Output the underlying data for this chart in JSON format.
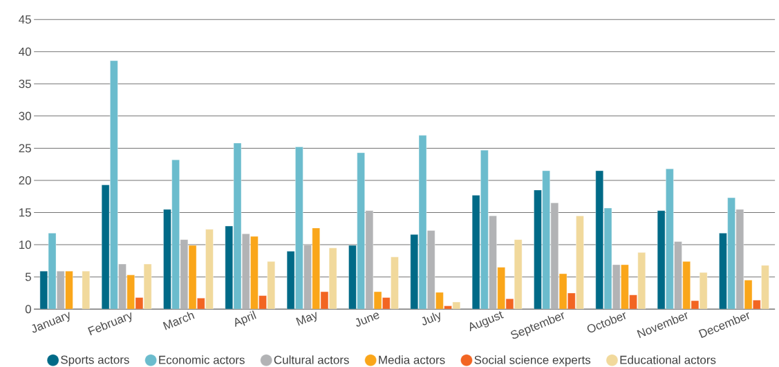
{
  "chart_data": {
    "type": "bar",
    "categories": [
      "January",
      "February",
      "March",
      "April",
      "May",
      "June",
      "July",
      "August",
      "September",
      "October",
      "November",
      "December"
    ],
    "series": [
      {
        "name": "Sports actors",
        "color": "#006a87",
        "values": [
          5.9,
          19.3,
          15.5,
          12.9,
          9.0,
          9.9,
          11.6,
          17.7,
          18.5,
          21.5,
          15.3,
          11.8
        ]
      },
      {
        "name": "Economic actors",
        "color": "#6bbccd",
        "values": [
          11.8,
          38.6,
          23.2,
          25.8,
          25.2,
          24.3,
          27.0,
          24.7,
          21.5,
          15.7,
          21.8,
          17.3
        ]
      },
      {
        "name": "Cultural actors",
        "color": "#b2b3b5",
        "values": [
          5.9,
          7.0,
          10.8,
          11.7,
          10.0,
          15.3,
          12.2,
          14.5,
          16.5,
          6.9,
          10.5,
          15.5
        ]
      },
      {
        "name": "Media actors",
        "color": "#faa61a",
        "values": [
          5.9,
          5.3,
          9.9,
          11.3,
          12.6,
          2.7,
          2.6,
          6.5,
          5.5,
          6.9,
          7.4,
          4.5
        ]
      },
      {
        "name": "Social science experts",
        "color": "#f26522",
        "values": [
          null,
          1.8,
          1.7,
          2.1,
          2.7,
          1.8,
          0.5,
          1.6,
          2.5,
          2.2,
          1.3,
          1.4
        ]
      },
      {
        "name": "Educational actors",
        "color": "#f1d99c",
        "values": [
          5.9,
          7.0,
          12.4,
          7.4,
          9.5,
          8.1,
          1.1,
          10.8,
          14.5,
          8.8,
          5.7,
          6.8
        ]
      }
    ],
    "ylim": [
      0,
      45
    ],
    "yticks": [
      0,
      5,
      10,
      15,
      20,
      25,
      30,
      35,
      40,
      45
    ],
    "grid": "y",
    "legend": "bottom",
    "marker": "circle"
  }
}
